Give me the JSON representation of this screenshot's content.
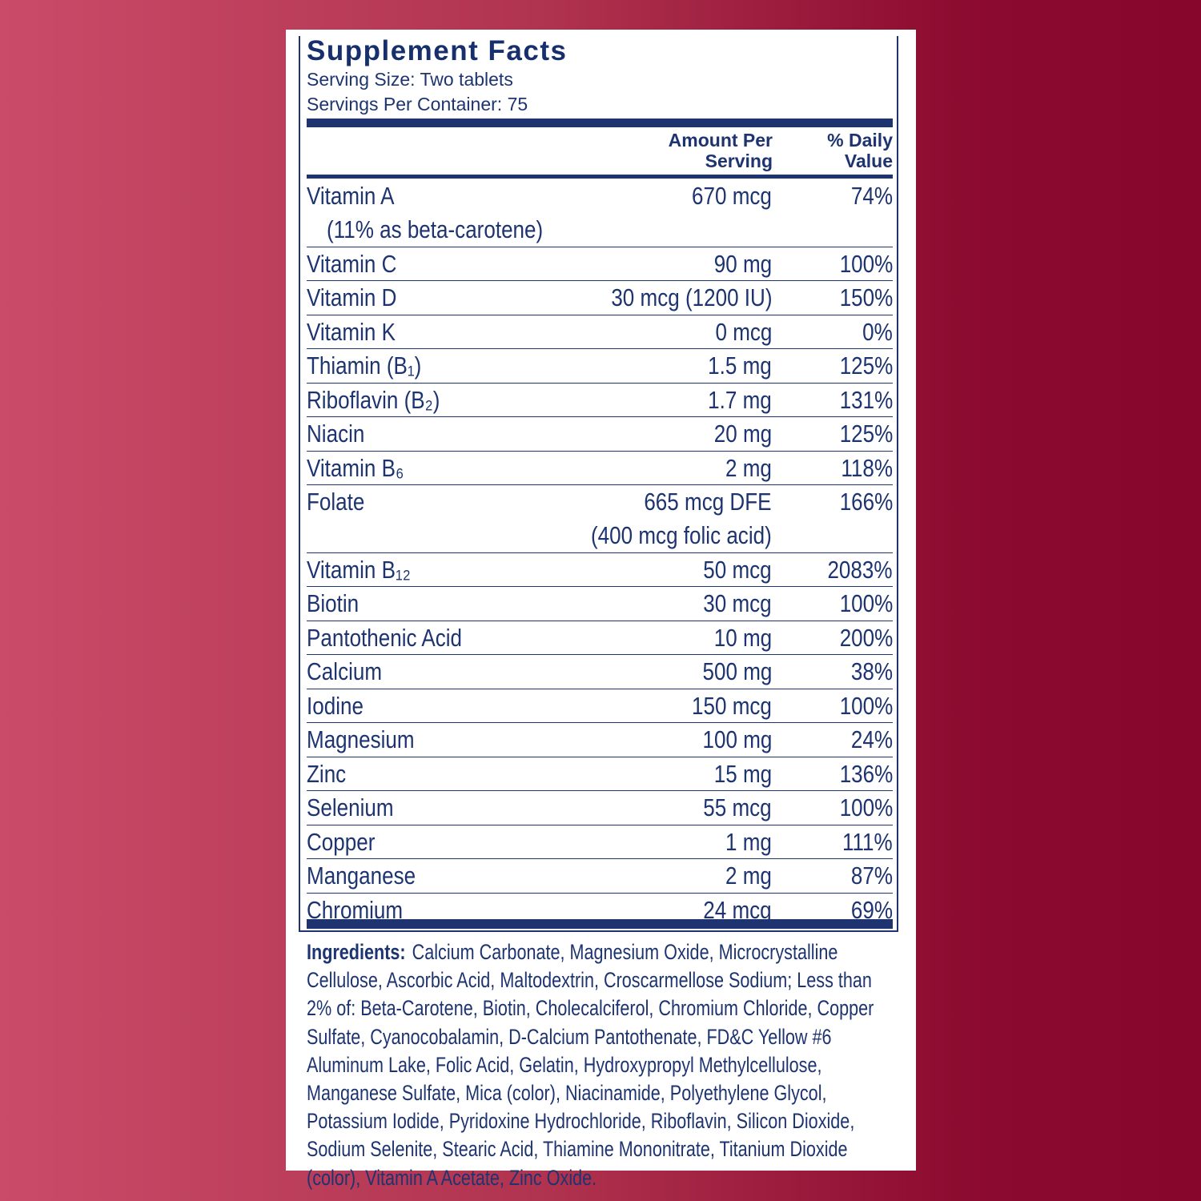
{
  "header": {
    "title": "Supplement Facts",
    "serving_size": "Serving Size: Two tablets",
    "servings_per_container": "Servings Per Container: 75"
  },
  "columns": {
    "amount": "Amount Per Serving",
    "daily_value": "% Daily Value"
  },
  "rows": [
    {
      "name": "Vitamin A",
      "note": "(11% as beta-carotene)",
      "amount": "670 mcg",
      "daily_value": "74%"
    },
    {
      "name": "Vitamin C",
      "amount": "90 mg",
      "daily_value": "100%"
    },
    {
      "name": "Vitamin D",
      "amount": "30 mcg (1200 IU)",
      "daily_value": "150%"
    },
    {
      "name": "Vitamin K",
      "amount": "0 mcg",
      "daily_value": "0%"
    },
    {
      "name": "Thiamin (B₁)",
      "amount": "1.5 mg",
      "daily_value": "125%"
    },
    {
      "name": "Riboflavin (B₂)",
      "amount": "1.7 mg",
      "daily_value": "131%"
    },
    {
      "name": "Niacin",
      "amount": "20 mg",
      "daily_value": "125%"
    },
    {
      "name": "Vitamin B₆",
      "amount": "2 mg",
      "daily_value": "118%"
    },
    {
      "name": "Folate",
      "amount": "665 mcg DFE",
      "amount_note": "(400 mcg folic acid)",
      "daily_value": "166%"
    },
    {
      "name": "Vitamin B₁₂",
      "amount": "50 mcg",
      "daily_value": "2083%"
    },
    {
      "name": "Biotin",
      "amount": "30 mcg",
      "daily_value": "100%"
    },
    {
      "name": "Pantothenic Acid",
      "amount": "10 mg",
      "daily_value": "200%"
    },
    {
      "name": "Calcium",
      "amount": "500 mg",
      "daily_value": "38%"
    },
    {
      "name": "Iodine",
      "amount": "150 mcg",
      "daily_value": "100%"
    },
    {
      "name": "Magnesium",
      "amount": "100 mg",
      "daily_value": "24%"
    },
    {
      "name": "Zinc",
      "amount": "15 mg",
      "daily_value": "136%"
    },
    {
      "name": "Selenium",
      "amount": "55 mcg",
      "daily_value": "100%"
    },
    {
      "name": "Copper",
      "amount": "1 mg",
      "daily_value": "111%"
    },
    {
      "name": "Manganese",
      "amount": "2 mg",
      "daily_value": "87%"
    },
    {
      "name": "Chromium",
      "amount": "24 mcg",
      "daily_value": "69%"
    }
  ],
  "ingredients": {
    "label": "Ingredients:",
    "text": "Calcium Carbonate, Magnesium Oxide, Microcrystalline Cellulose, Ascorbic Acid, Maltodextrin, Croscarmellose Sodium; Less than 2% of: Beta-Carotene, Biotin, Cholecalciferol, Chromium Chloride, Copper Sulfate, Cyanocobalamin, D-Calcium Pantothenate, FD&C Yellow #6 Aluminum Lake, Folic Acid, Gelatin, Hydroxypropyl Methylcellulose, Manganese Sulfate, Mica (color), Niacinamide, Polyethylene Glycol, Potassium Iodide, Pyridoxine Hydrochloride, Riboflavin, Silicon Dioxide, Sodium Selenite, Stearic Acid, Thiamine Mononitrate, Titanium Dioxide (color), Vitamin A Acetate, Zinc Oxide."
  }
}
